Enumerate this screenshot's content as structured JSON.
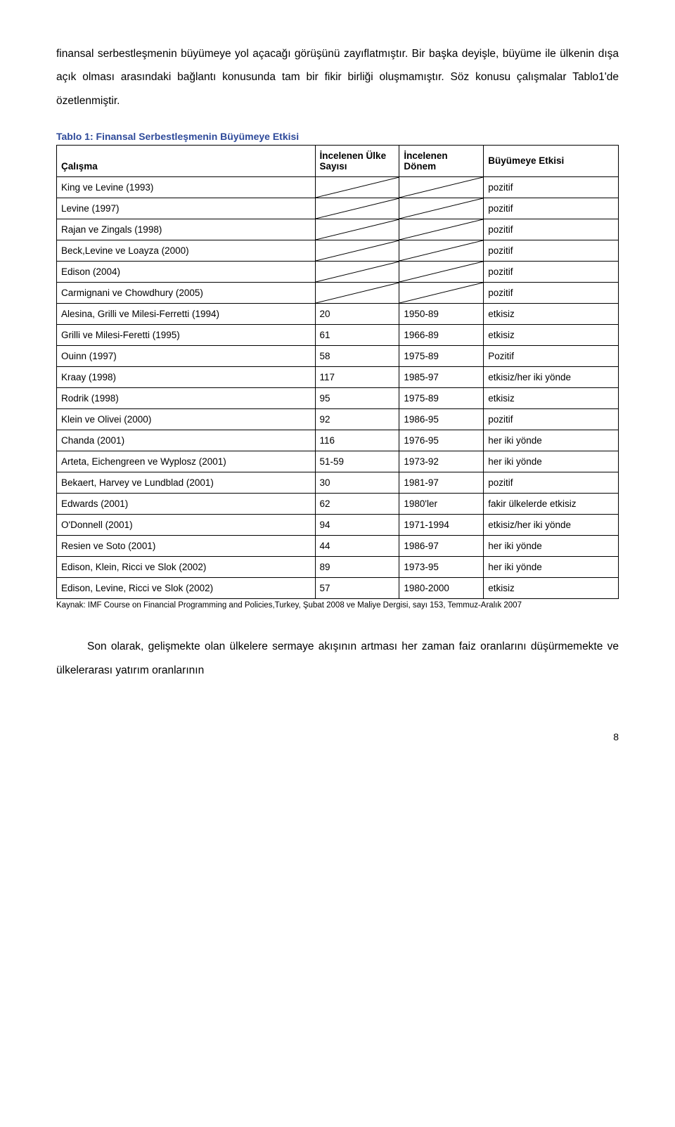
{
  "paragraph_top": "finansal serbestleşmenin büyümeye yol açacağı görüşünü zayıflatmıştır. Bir başka deyişle, büyüme ile ülkenin dışa açık olması arasındaki bağlantı konusunda tam bir fikir birliği oluşmamıştır. Söz konusu çalışmalar Tablo1'de özetlenmiştir.",
  "table": {
    "title": "Tablo 1: Finansal Serbestleşmenin Büyümeye Etkisi",
    "title_color": "#2e4a9a",
    "headers": {
      "c1": "Çalışma",
      "c2": "İncelenen Ülke Sayısı",
      "c3": "İncelenen Dönem",
      "c4": "Büyümeye Etkisi"
    },
    "rows_diagonal": [
      {
        "study": "King ve Levine (1993)",
        "effect": "pozitif"
      },
      {
        "study": "Levine (1997)",
        "effect": "pozitif"
      },
      {
        "study": "Rajan ve Zingals (1998)",
        "effect": "pozitif"
      },
      {
        "study": "Beck,Levine ve Loayza (2000)",
        "effect": "pozitif"
      },
      {
        "study": "Edison (2004)",
        "effect": "pozitif"
      },
      {
        "study": "Carmignani ve Chowdhury (2005)",
        "effect": "pozitif"
      }
    ],
    "rows_data": [
      {
        "study": "Alesina, Grilli ve Milesi-Ferretti (1994)",
        "n": "20",
        "period": "1950-89",
        "effect": "etkisiz"
      },
      {
        "study": "Grilli ve Milesi-Feretti (1995)",
        "n": "61",
        "period": "1966-89",
        "effect": "etkisiz"
      },
      {
        "study": "Ouinn (1997)",
        "n": "58",
        "period": "1975-89",
        "effect": "Pozitif"
      },
      {
        "study": "Kraay (1998)",
        "n": "117",
        "period": "1985-97",
        "effect": "etkisiz/her iki yönde"
      },
      {
        "study": "Rodrik (1998)",
        "n": "95",
        "period": "1975-89",
        "effect": "etkisiz"
      },
      {
        "study": "Klein ve Olivei (2000)",
        "n": "92",
        "period": "1986-95",
        "effect": "pozitif"
      },
      {
        "study": "Chanda (2001)",
        "n": "116",
        "period": "1976-95",
        "effect": "her iki yönde"
      },
      {
        "study": "Arteta, Eichengreen ve Wyplosz (2001)",
        "n": "51-59",
        "period": "1973-92",
        "effect": "her iki yönde"
      },
      {
        "study": "Bekaert, Harvey ve Lundblad (2001)",
        "n": "30",
        "period": "1981-97",
        "effect": "pozitif"
      },
      {
        "study": "Edwards (2001)",
        "n": "62",
        "period": "1980'ler",
        "effect": "fakir ülkelerde etkisiz"
      },
      {
        "study": "O'Donnell (2001)",
        "n": "94",
        "period": "1971-1994",
        "effect": "etkisiz/her iki yönde"
      },
      {
        "study": "Resien ve Soto (2001)",
        "n": "44",
        "period": "1986-97",
        "effect": "her iki yönde"
      },
      {
        "study": "Edison, Klein, Ricci ve Slok (2002)",
        "n": "89",
        "period": "1973-95",
        "effect": "her iki yönde"
      },
      {
        "study": "Edison, Levine, Ricci ve Slok (2002)",
        "n": "57",
        "period": "1980-2000",
        "effect": "etkisiz"
      }
    ],
    "border_color": "#000000"
  },
  "source_note": "Kaynak: IMF Course on Financial Programming and Policies,Turkey, Şubat 2008 ve Maliye Dergisi, sayı 153, Temmuz-Aralık 2007",
  "paragraph_bottom": "Son olarak, gelişmekte olan ülkelere sermaye akışının artması her zaman faiz oranlarını düşürmemekte ve ülkelerarası yatırım oranlarının",
  "page_number": "8"
}
